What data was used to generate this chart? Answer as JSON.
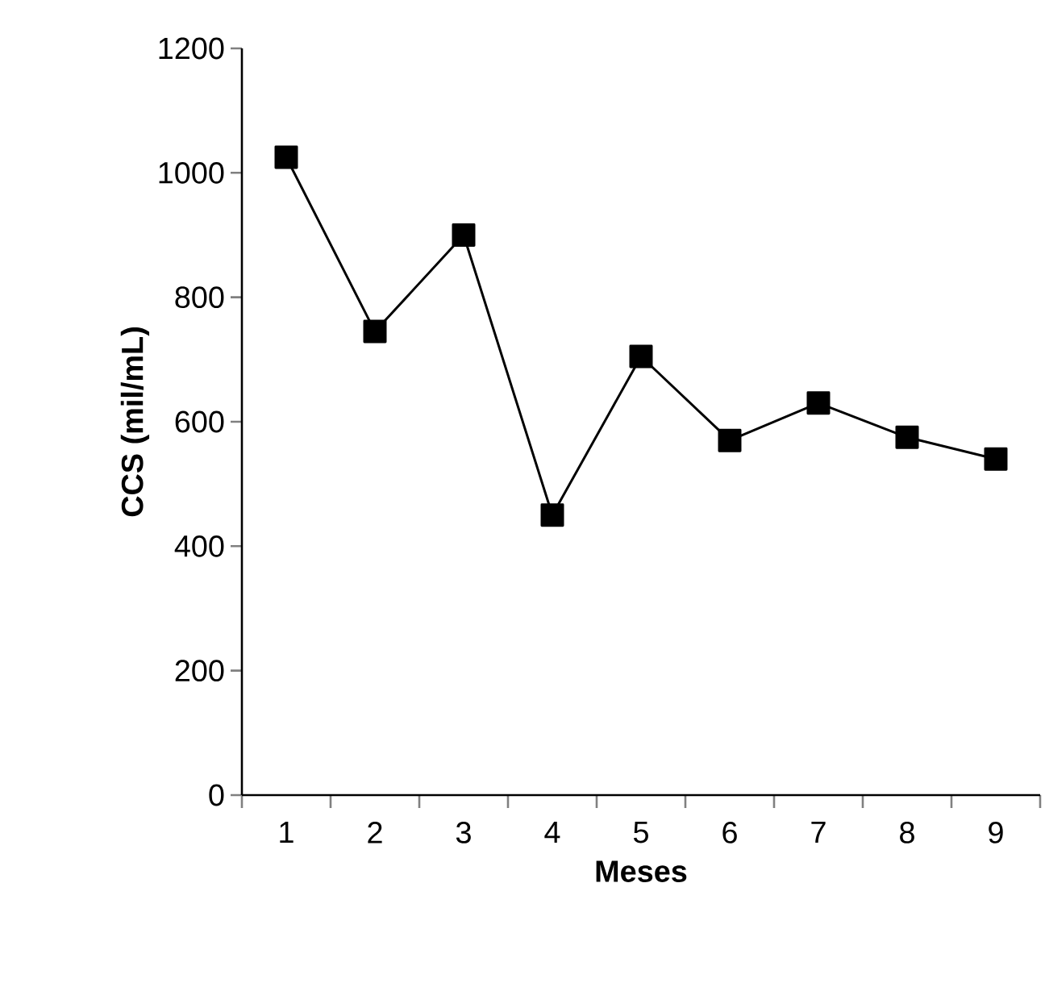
{
  "chart_data": {
    "type": "line",
    "xlabel": "Meses",
    "ylabel": "CCS (mil/mL)",
    "categories": [
      "1",
      "2",
      "3",
      "4",
      "5",
      "6",
      "7",
      "8",
      "9"
    ],
    "series": [
      {
        "color": "#000000",
        "values": [
          1025,
          745,
          900,
          450,
          705,
          570,
          630,
          575,
          540
        ]
      }
    ],
    "ylim": [
      0,
      1200
    ],
    "yticks": [
      0,
      200,
      400,
      600,
      800,
      1000,
      1200
    ],
    "marker": "square",
    "line_style": "solid",
    "grid": false
  }
}
